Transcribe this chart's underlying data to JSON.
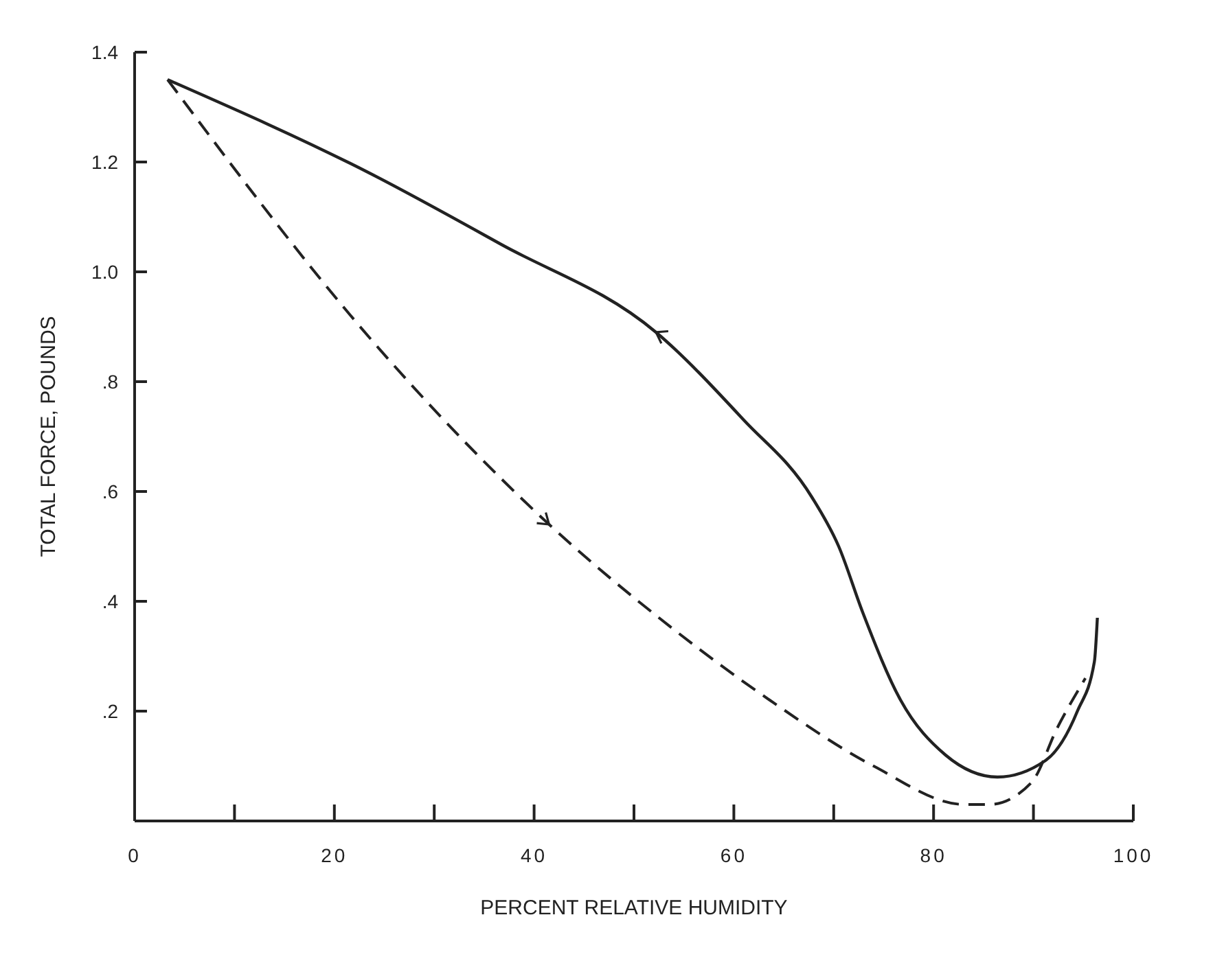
{
  "chart_data": {
    "type": "line",
    "xlabel": "PERCENT RELATIVE HUMIDITY",
    "ylabel": "TOTAL FORCE, POUNDS",
    "xlim": [
      0,
      100
    ],
    "ylim": [
      0,
      1.4
    ],
    "xticks": [
      0,
      {
        "value": 10,
        "label": null
      },
      20,
      {
        "value": 30,
        "label": null
      },
      40,
      {
        "value": 50,
        "label": null
      },
      60,
      {
        "value": 70,
        "label": null
      },
      80,
      {
        "value": 90,
        "label": null
      },
      100
    ],
    "yticks": [
      {
        "value": 0.2,
        "label": ".2"
      },
      {
        "value": 0.4,
        "label": ".4"
      },
      {
        "value": 0.6,
        "label": ".6"
      },
      {
        "value": 0.8,
        "label": ".8"
      },
      {
        "value": 1.0,
        "label": "1.0"
      },
      {
        "value": 1.2,
        "label": "1.2"
      },
      {
        "value": 1.4,
        "label": "1.4"
      }
    ],
    "grid": false,
    "marker": "none",
    "series": [
      {
        "color": "#222222",
        "line_style": "solid",
        "x": [
          3.3,
          23.5,
          36.7,
          52.2,
          61.0,
          67.8,
          70.5,
          72.9,
          76.7,
          81.2,
          86.4,
          91.2,
          94.4,
          96.1,
          96.4
        ],
        "values": [
          1.35,
          1.18,
          1.05,
          0.89,
          0.73,
          0.59,
          0.5,
          0.38,
          0.22,
          0.12,
          0.08,
          0.11,
          0.2,
          0.29,
          0.37
        ]
      },
      {
        "color": "#222222",
        "line_style": "dashed",
        "x": [
          3.3,
          24.0,
          41.5,
          53.9,
          63.6,
          74.0,
          83.1,
          85.6,
          89.8,
          92.4,
          95.2
        ],
        "values": [
          1.35,
          0.87,
          0.54,
          0.35,
          0.22,
          0.1,
          0.03,
          0.03,
          0.07,
          0.17,
          0.26
        ]
      }
    ]
  }
}
